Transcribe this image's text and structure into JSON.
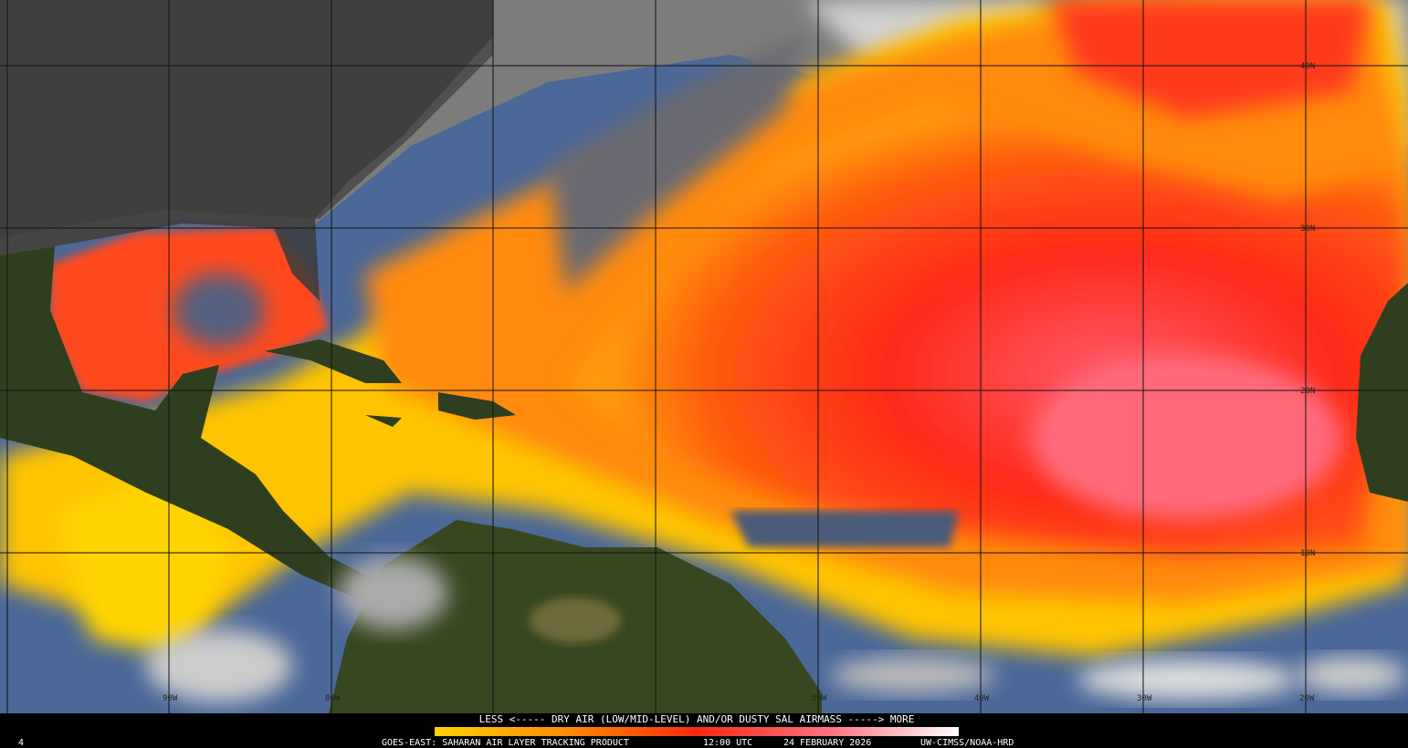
{
  "map": {
    "longitude_labels": [
      "90W",
      "80W",
      "50W",
      "40W",
      "30W",
      "20W"
    ],
    "latitude_labels": [
      "40N",
      "30N",
      "20N",
      "10N"
    ]
  },
  "legend": {
    "caption": "LESS <----- DRY AIR (LOW/MID-LEVEL) AND/OR DUSTY SAL AIRMASS -----> MORE"
  },
  "footer": {
    "frame": "4",
    "product": "GOES-EAST: SAHARAN AIR LAYER TRACKING PRODUCT",
    "time": "12:00 UTC",
    "date": "24 FEBRUARY 2026",
    "credit": "UW-CIMSS/NOAA-HRD"
  }
}
